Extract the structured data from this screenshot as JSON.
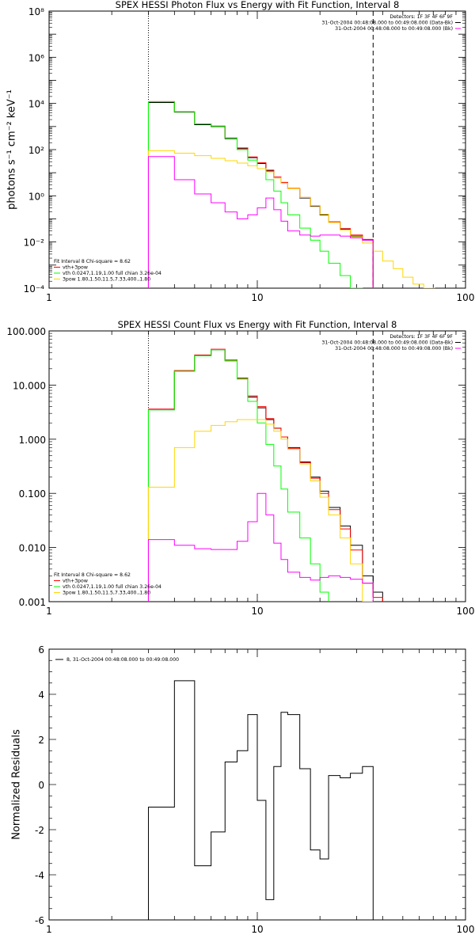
{
  "chart_data": [
    {
      "id": "photon",
      "type": "line",
      "title": "SPEX HESSI Photon Flux vs Energy with Fit Function, Interval 8",
      "ylabel": "photons s⁻¹ cm⁻² keV⁻¹",
      "xlabel": "",
      "xscale": "log",
      "yscale": "log",
      "xlim": [
        1,
        100
      ],
      "ylim": [
        0.0001,
        100000000
      ],
      "xtick_labels": [
        "1",
        "10",
        "100"
      ],
      "ytick_labels": [
        "10⁻⁴",
        "10⁻²",
        "10⁰",
        "10²",
        "10⁴",
        "10⁶",
        "10⁸"
      ],
      "legend_topright": [
        {
          "text": "Detectors: 1F 3F 4F 6F 9F",
          "color": "#000000"
        },
        {
          "text": "31-Oct-2004 00:48:08.000 to 00:49:08.000 (Data-Bk)",
          "color": "#000000"
        },
        {
          "text": "31-Oct-2004 00:48:08.000 to 00:49:08.000 (Bk)",
          "color": "#ff00ff"
        }
      ],
      "legend_bottomleft": [
        {
          "text": "Fit Interval 8   Chi-square = 8.62",
          "color": "#000000"
        },
        {
          "text": "vth+3pow",
          "color": "#ff0000"
        },
        {
          "text": "vth 0.0247,1.19,1.00  full chian 3.26e-04",
          "color": "#00ff00"
        },
        {
          "text": "3pow 1.80,1.50,11.5,7.33,400.,1.80",
          "color": "#ffd700"
        }
      ],
      "vlines": [
        {
          "x": 3,
          "style": "dotted"
        },
        {
          "x": 36,
          "style": "dashed"
        }
      ],
      "edges": [
        3,
        4,
        5,
        6,
        7,
        8,
        9,
        10,
        11,
        12,
        13,
        14,
        16,
        18,
        20,
        22,
        25,
        28,
        32,
        36,
        40,
        45,
        50,
        56,
        63,
        71
      ],
      "series": [
        {
          "color": "#000000",
          "values": [
            11000,
            4200,
            1200,
            1000,
            300,
            110,
            45,
            25,
            12,
            6,
            3.5,
            2,
            0.8,
            0.35,
            0.15,
            0.07,
            0.035,
            0.018,
            0.012,
            null,
            null,
            null,
            null,
            null,
            null
          ]
        },
        {
          "color": "#ff0000",
          "values": [
            12000,
            4400,
            1300,
            1050,
            320,
            118,
            48,
            27,
            13,
            6.5,
            3.8,
            2.1,
            0.85,
            0.37,
            0.16,
            0.075,
            0.038,
            0.02,
            0.013,
            null,
            null,
            null,
            null,
            null,
            null
          ]
        },
        {
          "color": "#00ff00",
          "values": [
            12000,
            4400,
            1300,
            1050,
            320,
            100,
            35,
            15,
            5,
            1.6,
            0.5,
            0.15,
            0.04,
            0.012,
            0.004,
            0.0012,
            0.00035,
            0.0001,
            null,
            null,
            null,
            null,
            null,
            null,
            null
          ]
        },
        {
          "color": "#ffd700",
          "values": [
            90,
            70,
            55,
            42,
            33,
            26,
            20,
            15,
            11,
            6,
            3.5,
            2,
            0.85,
            0.37,
            0.16,
            0.07,
            0.033,
            0.017,
            0.009,
            0.004,
            0.0015,
            0.0007,
            0.0003,
            0.00015,
            0.0001
          ]
        },
        {
          "color": "#ff00ff",
          "values": [
            50,
            5,
            1.2,
            0.5,
            0.2,
            0.1,
            0.15,
            0.3,
            0.8,
            0.25,
            0.08,
            0.03,
            0.02,
            0.018,
            0.02,
            0.02,
            0.018,
            0.015,
            0.012,
            null,
            null,
            null,
            null,
            null,
            null
          ]
        }
      ]
    },
    {
      "id": "count",
      "type": "line",
      "title": "SPEX HESSI Count Flux vs Energy with Fit Function, Interval 8",
      "ylabel": "",
      "xlabel": "",
      "xscale": "log",
      "yscale": "log",
      "xlim": [
        1,
        100
      ],
      "ylim": [
        0.001,
        100
      ],
      "xtick_labels": [
        "1",
        "10",
        "100"
      ],
      "ytick_labels": [
        "0.001",
        "0.010",
        "0.100",
        "1.000",
        "10.000",
        "100.000"
      ],
      "legend_topright": [
        {
          "text": "Detectors: 1F 3F 4F 6F 9F",
          "color": "#000000"
        },
        {
          "text": "31-Oct-2004 00:48:08.000 to 00:49:08.000 (Data-Bk)",
          "color": "#000000"
        },
        {
          "text": "31-Oct-2004 00:48:08.000 to 00:49:08.000 (Bk)",
          "color": "#ff00ff"
        }
      ],
      "legend_bottomleft": [
        {
          "text": "Fit Interval 8   Chi-square = 8.62",
          "color": "#000000"
        },
        {
          "text": "vth+3pow",
          "color": "#ff0000"
        },
        {
          "text": "vth 0.0247,1.19,1.00  full chian 3.26e-04",
          "color": "#00ff00"
        },
        {
          "text": "3pow 1.80,1.50,11.5,7.33,400.,1.80",
          "color": "#ffd700"
        }
      ],
      "vlines": [
        {
          "x": 3,
          "style": "dotted"
        },
        {
          "x": 36,
          "style": "dashed"
        }
      ],
      "edges": [
        3,
        4,
        5,
        6,
        7,
        8,
        9,
        10,
        11,
        12,
        13,
        14,
        16,
        18,
        20,
        22,
        25,
        28,
        32,
        36,
        40
      ],
      "series": [
        {
          "color": "#000000",
          "values": [
            3.5,
            18,
            35,
            45,
            28,
            13,
            6,
            3.8,
            2.3,
            1.6,
            1.1,
            0.7,
            0.38,
            0.2,
            0.11,
            0.055,
            0.025,
            0.011,
            0.003,
            0.0015
          ]
        },
        {
          "color": "#ff0000",
          "values": [
            3.6,
            18.5,
            36,
            46,
            29,
            13.5,
            6.3,
            4,
            2.4,
            1.6,
            1.1,
            0.68,
            0.37,
            0.19,
            0.1,
            0.05,
            0.022,
            0.009,
            0.0022,
            0.0012
          ]
        },
        {
          "color": "#00ff00",
          "values": [
            3.5,
            18,
            35,
            45,
            28,
            13,
            5,
            2,
            0.8,
            0.32,
            0.12,
            0.045,
            0.015,
            0.005,
            0.0015,
            0.0005,
            null,
            null,
            null,
            null
          ]
        },
        {
          "color": "#ffd700",
          "values": [
            0.13,
            0.7,
            1.4,
            1.8,
            2.1,
            2.3,
            2.3,
            2.3,
            1.9,
            1.4,
            1.0,
            0.65,
            0.35,
            0.17,
            0.085,
            0.04,
            0.015,
            0.005,
            0.001,
            0.0007
          ]
        },
        {
          "color": "#ff00ff",
          "values": [
            0.014,
            0.011,
            0.0095,
            0.0092,
            0.0092,
            0.013,
            0.03,
            0.1,
            0.04,
            0.012,
            0.006,
            0.0035,
            0.0028,
            0.0025,
            0.0028,
            0.003,
            0.0028,
            0.0026,
            0.0022,
            null
          ]
        }
      ]
    },
    {
      "id": "resid",
      "type": "line",
      "title": "",
      "ylabel": "Normalized Residuals",
      "xlabel": "",
      "xscale": "log",
      "yscale": "linear",
      "xlim": [
        1,
        100
      ],
      "ylim": [
        -6,
        6
      ],
      "xtick_labels": [
        "1",
        "10",
        "100"
      ],
      "ytick_labels": [
        "-6",
        "-4",
        "-2",
        "0",
        "2",
        "4",
        "6"
      ],
      "legend_topleft": [
        {
          "text": "8, 31-Oct-2004 00:48:08.000 to 00:49:08.000",
          "color": "#000000"
        }
      ],
      "edges": [
        3,
        4,
        5,
        6,
        7,
        8,
        9,
        10,
        11,
        12,
        13,
        14,
        16,
        18,
        20,
        22,
        25,
        28,
        32,
        36
      ],
      "series": [
        {
          "color": "#000000",
          "values": [
            -1.0,
            4.6,
            -3.6,
            -2.1,
            1.0,
            1.5,
            3.1,
            -0.7,
            -5.1,
            0.8,
            3.2,
            3.1,
            0.7,
            -2.9,
            -3.3,
            0.4,
            0.3,
            0.5,
            0.8
          ]
        }
      ]
    }
  ]
}
